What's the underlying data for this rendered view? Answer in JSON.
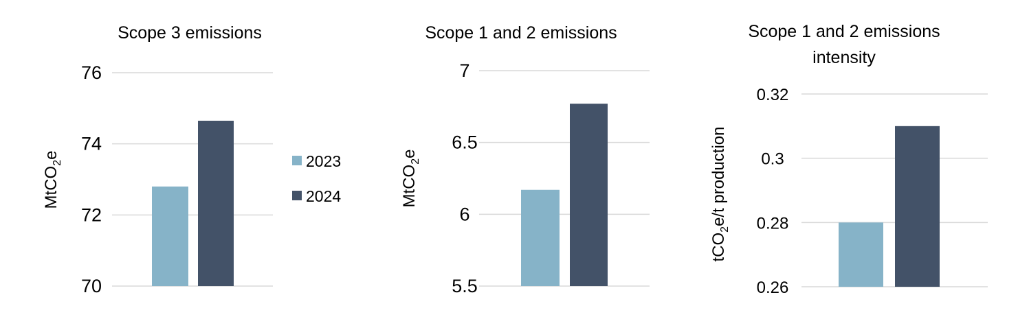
{
  "chart_data": [
    {
      "type": "bar",
      "title": "Scope 3 emissions",
      "ylabel": "MtCO2e",
      "ylabel_parts": [
        "MtCO",
        "2",
        "e"
      ],
      "ylim": [
        70,
        76
      ],
      "yticks": [
        "70",
        "72",
        "74",
        "76"
      ],
      "grid": true,
      "series": [
        {
          "name": "2023",
          "values": [
            72.8
          ]
        },
        {
          "name": "2024",
          "values": [
            74.65
          ]
        }
      ]
    },
    {
      "type": "bar",
      "title": "Scope 1 and 2 emissions",
      "ylabel": "MtCO2e",
      "ylabel_parts": [
        "MtCO",
        "2",
        "e"
      ],
      "ylim": [
        5.5,
        7
      ],
      "yticks": [
        "5.5",
        "6",
        "6.5",
        "7"
      ],
      "grid": true,
      "series": [
        {
          "name": "2023",
          "values": [
            6.17
          ]
        },
        {
          "name": "2024",
          "values": [
            6.77
          ]
        }
      ]
    },
    {
      "type": "bar",
      "title": "Scope 1 and 2 emissions intensity",
      "title_lines": [
        "Scope 1 and 2 emissions",
        "intensity"
      ],
      "ylabel": "tCO2e/t production",
      "ylabel_parts": [
        "tCO",
        "2",
        "e/t production"
      ],
      "ylim": [
        0.26,
        0.32
      ],
      "yticks": [
        "0.26",
        "0.28",
        "0.3",
        "0.32"
      ],
      "grid": true,
      "series": [
        {
          "name": "2023",
          "values": [
            0.28
          ]
        },
        {
          "name": "2024",
          "values": [
            0.31
          ]
        }
      ]
    }
  ],
  "legend": {
    "placement": "between-first-and-second-chart",
    "items": [
      {
        "label": "2023",
        "color": "#86b3c8"
      },
      {
        "label": "2024",
        "color": "#435268"
      }
    ]
  },
  "colors": {
    "2023": "#86b3c8",
    "2024": "#435268",
    "grid": "#d9d9d9"
  }
}
